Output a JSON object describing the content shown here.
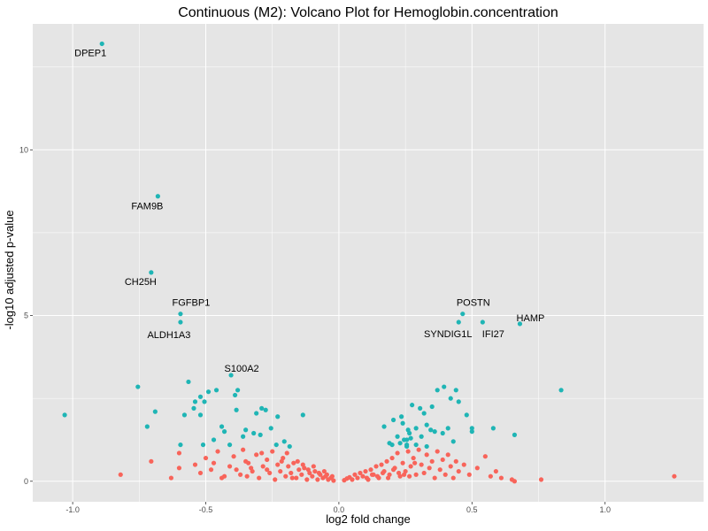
{
  "chart_data": {
    "type": "scatter",
    "title": "Continuous (M2): Volcano Plot for Hemoglobin.concentration",
    "xlabel": "log2 fold change",
    "ylabel": "-log10 adjusted p-value",
    "xlim": [
      -1.15,
      1.37
    ],
    "ylim": [
      -0.62,
      13.8
    ],
    "x_ticks": [
      -1.0,
      -0.5,
      0.0,
      0.5,
      1.0
    ],
    "x_tick_labels": [
      "-1.0",
      "-0.5",
      "0.0",
      "0.5",
      "1.0"
    ],
    "y_ticks": [
      0,
      5,
      10
    ],
    "y_tick_labels": [
      "0",
      "5",
      "10"
    ],
    "grid": true,
    "legend": "none",
    "colors": {
      "significant": "#1FB5B5",
      "not_significant": "#F8645A",
      "panel": "#E5E5E5",
      "grid": "#FFFFFF"
    },
    "significant_points": [
      [
        -0.89,
        13.2
      ],
      [
        -0.68,
        8.6
      ],
      [
        -0.705,
        6.3
      ],
      [
        -0.595,
        5.05
      ],
      [
        -0.595,
        4.8
      ],
      [
        -0.405,
        3.2
      ],
      [
        -0.755,
        2.85
      ],
      [
        -1.03,
        2.0
      ],
      [
        -0.565,
        3.0
      ],
      [
        -0.52,
        2.55
      ],
      [
        -0.49,
        2.7
      ],
      [
        -0.46,
        2.75
      ],
      [
        -0.38,
        2.75
      ],
      [
        -0.39,
        2.6
      ],
      [
        -0.54,
        2.4
      ],
      [
        -0.545,
        2.2
      ],
      [
        -0.505,
        2.4
      ],
      [
        -0.52,
        2.0
      ],
      [
        -0.58,
        2.0
      ],
      [
        -0.69,
        2.1
      ],
      [
        -0.72,
        1.65
      ],
      [
        -0.385,
        2.15
      ],
      [
        -0.29,
        2.2
      ],
      [
        -0.275,
        2.15
      ],
      [
        -0.31,
        2.05
      ],
      [
        -0.23,
        1.95
      ],
      [
        -0.135,
        2.0
      ],
      [
        -0.255,
        1.6
      ],
      [
        -0.35,
        1.55
      ],
      [
        -0.44,
        1.65
      ],
      [
        -0.47,
        1.25
      ],
      [
        -0.51,
        1.1
      ],
      [
        -0.595,
        1.1
      ],
      [
        -0.36,
        1.35
      ],
      [
        -0.32,
        1.45
      ],
      [
        -0.295,
        1.4
      ],
      [
        -0.41,
        1.1
      ],
      [
        -0.205,
        1.2
      ],
      [
        -0.185,
        1.05
      ],
      [
        -0.235,
        1.1
      ],
      [
        -0.43,
        1.5
      ],
      [
        0.17,
        1.65
      ],
      [
        0.205,
        1.85
      ],
      [
        0.235,
        1.95
      ],
      [
        0.26,
        1.55
      ],
      [
        0.275,
        2.3
      ],
      [
        0.305,
        2.2
      ],
      [
        0.32,
        2.05
      ],
      [
        0.35,
        2.25
      ],
      [
        0.37,
        2.75
      ],
      [
        0.395,
        2.85
      ],
      [
        0.42,
        2.5
      ],
      [
        0.44,
        2.75
      ],
      [
        0.45,
        2.4
      ],
      [
        0.48,
        2.0
      ],
      [
        0.22,
        1.35
      ],
      [
        0.245,
        1.25
      ],
      [
        0.255,
        1.05
      ],
      [
        0.29,
        1.1
      ],
      [
        0.31,
        1.35
      ],
      [
        0.33,
        1.7
      ],
      [
        0.345,
        1.55
      ],
      [
        0.39,
        1.45
      ],
      [
        0.43,
        1.2
      ],
      [
        0.5,
        1.6
      ],
      [
        0.2,
        1.1
      ],
      [
        0.23,
        1.15
      ],
      [
        0.27,
        1.3
      ],
      [
        0.29,
        1.6
      ],
      [
        0.33,
        1.05
      ],
      [
        0.19,
        1.15
      ],
      [
        0.24,
        1.75
      ],
      [
        0.36,
        1.5
      ],
      [
        0.255,
        1.25
      ],
      [
        0.265,
        1.45
      ],
      [
        0.465,
        5.05
      ],
      [
        0.45,
        4.8
      ],
      [
        0.54,
        4.8
      ],
      [
        0.68,
        4.75
      ],
      [
        0.835,
        2.75
      ],
      [
        0.58,
        1.6
      ],
      [
        0.66,
        1.4
      ],
      [
        0.5,
        1.5
      ],
      [
        0.41,
        1.6
      ],
      [
        0.255,
        1.1
      ]
    ],
    "nonsignificant_points": [
      [
        -0.82,
        0.2
      ],
      [
        -0.705,
        0.6
      ],
      [
        -0.6,
        0.4
      ],
      [
        -0.63,
        0.1
      ],
      [
        -0.6,
        0.85
      ],
      [
        -0.54,
        0.5
      ],
      [
        -0.5,
        0.7
      ],
      [
        -0.48,
        0.35
      ],
      [
        -0.455,
        0.9
      ],
      [
        -0.44,
        0.1
      ],
      [
        -0.41,
        0.45
      ],
      [
        -0.395,
        0.75
      ],
      [
        -0.37,
        0.2
      ],
      [
        -0.36,
        0.95
      ],
      [
        -0.34,
        0.55
      ],
      [
        -0.325,
        0.3
      ],
      [
        -0.31,
        0.8
      ],
      [
        -0.3,
        0.1
      ],
      [
        -0.285,
        0.45
      ],
      [
        -0.27,
        0.65
      ],
      [
        -0.26,
        0.25
      ],
      [
        -0.25,
        0.9
      ],
      [
        -0.24,
        0.05
      ],
      [
        -0.23,
        0.5
      ],
      [
        -0.22,
        0.3
      ],
      [
        -0.21,
        0.7
      ],
      [
        -0.2,
        0.15
      ],
      [
        -0.19,
        0.45
      ],
      [
        -0.18,
        0.25
      ],
      [
        -0.17,
        0.55
      ],
      [
        -0.16,
        0.1
      ],
      [
        -0.15,
        0.35
      ],
      [
        -0.14,
        0.2
      ],
      [
        -0.13,
        0.4
      ],
      [
        -0.12,
        0.05
      ],
      [
        -0.11,
        0.25
      ],
      [
        -0.1,
        0.15
      ],
      [
        -0.09,
        0.3
      ],
      [
        -0.08,
        0.05
      ],
      [
        -0.07,
        0.2
      ],
      [
        -0.06,
        0.1
      ],
      [
        -0.05,
        0.15
      ],
      [
        -0.04,
        0.05
      ],
      [
        -0.03,
        0.1
      ],
      [
        -0.02,
        0.02
      ],
      [
        -0.35,
        0.6
      ],
      [
        -0.33,
        0.4
      ],
      [
        -0.29,
        0.85
      ],
      [
        -0.27,
        0.35
      ],
      [
        -0.215,
        0.6
      ],
      [
        -0.195,
        0.85
      ],
      [
        -0.175,
        0.1
      ],
      [
        -0.155,
        0.6
      ],
      [
        -0.135,
        0.5
      ],
      [
        -0.115,
        0.35
      ],
      [
        -0.095,
        0.45
      ],
      [
        -0.075,
        0.25
      ],
      [
        -0.055,
        0.3
      ],
      [
        -0.045,
        0.2
      ],
      [
        -0.025,
        0.15
      ],
      [
        -0.52,
        0.25
      ],
      [
        -0.47,
        0.55
      ],
      [
        -0.43,
        0.15
      ],
      [
        -0.385,
        0.35
      ],
      [
        -0.345,
        0.15
      ],
      [
        0.02,
        0.03
      ],
      [
        0.03,
        0.08
      ],
      [
        0.04,
        0.12
      ],
      [
        0.05,
        0.05
      ],
      [
        0.06,
        0.2
      ],
      [
        0.07,
        0.1
      ],
      [
        0.08,
        0.25
      ],
      [
        0.09,
        0.15
      ],
      [
        0.1,
        0.3
      ],
      [
        0.11,
        0.05
      ],
      [
        0.12,
        0.35
      ],
      [
        0.13,
        0.2
      ],
      [
        0.14,
        0.45
      ],
      [
        0.15,
        0.1
      ],
      [
        0.16,
        0.5
      ],
      [
        0.17,
        0.3
      ],
      [
        0.18,
        0.6
      ],
      [
        0.19,
        0.2
      ],
      [
        0.2,
        0.7
      ],
      [
        0.21,
        0.4
      ],
      [
        0.22,
        0.85
      ],
      [
        0.23,
        0.15
      ],
      [
        0.24,
        0.55
      ],
      [
        0.25,
        0.3
      ],
      [
        0.26,
        0.9
      ],
      [
        0.27,
        0.45
      ],
      [
        0.28,
        0.7
      ],
      [
        0.29,
        0.2
      ],
      [
        0.3,
        0.95
      ],
      [
        0.31,
        0.5
      ],
      [
        0.32,
        0.25
      ],
      [
        0.33,
        0.8
      ],
      [
        0.34,
        0.4
      ],
      [
        0.35,
        0.6
      ],
      [
        0.36,
        0.1
      ],
      [
        0.37,
        0.9
      ],
      [
        0.38,
        0.35
      ],
      [
        0.39,
        0.65
      ],
      [
        0.4,
        0.2
      ],
      [
        0.41,
        0.8
      ],
      [
        0.42,
        0.45
      ],
      [
        0.43,
        0.1
      ],
      [
        0.44,
        0.6
      ],
      [
        0.45,
        0.3
      ],
      [
        0.47,
        0.5
      ],
      [
        0.49,
        0.2
      ],
      [
        0.52,
        0.4
      ],
      [
        0.55,
        0.75
      ],
      [
        0.57,
        0.15
      ],
      [
        0.59,
        0.3
      ],
      [
        0.65,
        0.05
      ],
      [
        0.66,
        0.0
      ],
      [
        0.76,
        0.05
      ],
      [
        1.26,
        0.15
      ],
      [
        0.61,
        0.1
      ],
      [
        0.105,
        0.1
      ],
      [
        0.125,
        0.2
      ],
      [
        0.145,
        0.15
      ],
      [
        0.165,
        0.25
      ],
      [
        0.185,
        0.1
      ],
      [
        0.205,
        0.35
      ],
      [
        0.225,
        0.25
      ],
      [
        0.245,
        0.2
      ],
      [
        0.265,
        0.15
      ],
      [
        0.285,
        0.55
      ]
    ],
    "labels": [
      {
        "text": "DPEP1",
        "x": -0.89,
        "y": 13.2
      },
      {
        "text": "FAM9B",
        "x": -0.68,
        "y": 8.6
      },
      {
        "text": "CH25H",
        "x": -0.705,
        "y": 6.3
      },
      {
        "text": "FGFBP1",
        "x": -0.595,
        "y": 5.05
      },
      {
        "text": "ALDH1A3",
        "x": -0.595,
        "y": 4.8
      },
      {
        "text": "S100A2",
        "x": -0.405,
        "y": 3.2
      },
      {
        "text": "POSTN",
        "x": 0.465,
        "y": 5.05
      },
      {
        "text": "SYNDIG1L",
        "x": 0.45,
        "y": 4.8
      },
      {
        "text": "IFI27",
        "x": 0.54,
        "y": 4.8
      },
      {
        "text": "HAMP",
        "x": 0.68,
        "y": 4.75
      }
    ]
  }
}
